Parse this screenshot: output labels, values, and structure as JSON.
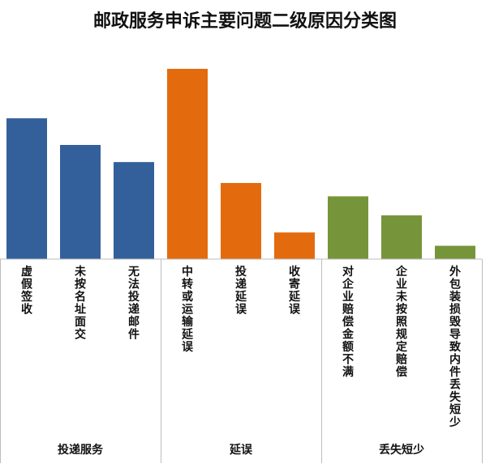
{
  "chart_data": {
    "type": "bar",
    "title": "邮政服务申诉主要问题二级原因分类图",
    "xlabel": "",
    "ylabel": "",
    "ylim": [
      0,
      100
    ],
    "grid": false,
    "legend": "none",
    "groups": [
      {
        "name": "投递服务",
        "color": "#33609a",
        "categories": [
          "虚假签收",
          "未按名址面交",
          "无法投递邮件"
        ],
        "values": [
          74,
          60,
          51
        ]
      },
      {
        "name": "延误",
        "color": "#e36b0e",
        "categories": [
          "中转或运输延误",
          "投递延误",
          "收寄延误"
        ],
        "values": [
          100,
          40,
          14
        ]
      },
      {
        "name": "丢失短少",
        "color": "#76953a",
        "categories": [
          "对企业赔偿金额不满",
          "企业未按照规定赔偿",
          "外包装损毁导致内件丢失短少"
        ],
        "values": [
          33,
          23,
          7
        ]
      }
    ]
  }
}
